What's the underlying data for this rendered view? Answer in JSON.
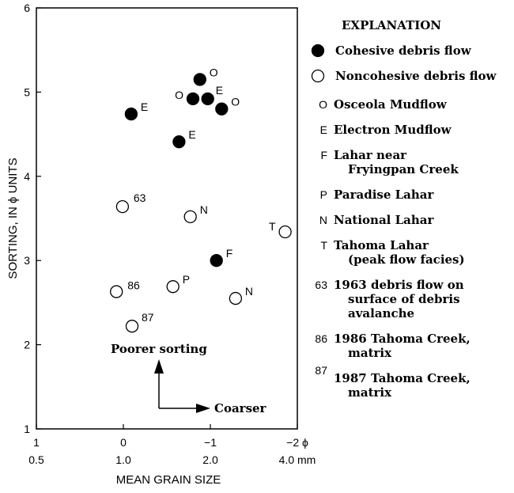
{
  "chart_data": {
    "type": "scatter",
    "xlabel": "MEAN GRAIN SIZE",
    "ylabel": "SORTING, IN ϕ UNITS",
    "x_axis": {
      "phi_ticks": [
        {
          "value": 1,
          "label": "1"
        },
        {
          "value": 0,
          "label": "0"
        },
        {
          "value": -1,
          "label": "−1"
        },
        {
          "value": -2,
          "label": "−2 ϕ"
        }
      ],
      "mm_ticks": [
        {
          "value": 1,
          "label": "0.5"
        },
        {
          "value": 0,
          "label": "1.0"
        },
        {
          "value": -1,
          "label": "2.0"
        },
        {
          "value": -2,
          "label": "4.0 mm"
        }
      ],
      "xlim": [
        1,
        -2
      ],
      "reversed": true
    },
    "y_axis": {
      "ticks": [
        1,
        2,
        3,
        4,
        5,
        6
      ],
      "ylim": [
        1,
        6
      ]
    },
    "grid": false,
    "series": [
      {
        "name": "Cohesive debris flow",
        "marker": "filled",
        "points": [
          {
            "x": -0.88,
            "y": 5.15,
            "label": "O"
          },
          {
            "x": -0.8,
            "y": 4.92,
            "label": "O"
          },
          {
            "x": -0.97,
            "y": 4.92,
            "label": "E"
          },
          {
            "x": -1.13,
            "y": 4.8,
            "label": "O"
          },
          {
            "x": -0.09,
            "y": 4.74,
            "label": "E"
          },
          {
            "x": -0.64,
            "y": 4.41,
            "label": "E"
          },
          {
            "x": -1.07,
            "y": 3.0,
            "label": "F"
          }
        ]
      },
      {
        "name": "Noncohesive debris flow",
        "marker": "open",
        "points": [
          {
            "x": 0.01,
            "y": 3.64,
            "label": "63"
          },
          {
            "x": -0.77,
            "y": 3.52,
            "label": "N"
          },
          {
            "x": -1.86,
            "y": 3.34,
            "label": "T"
          },
          {
            "x": -0.57,
            "y": 2.69,
            "label": "P"
          },
          {
            "x": 0.08,
            "y": 2.63,
            "label": "86"
          },
          {
            "x": -1.29,
            "y": 2.55,
            "label": "N"
          },
          {
            "x": -0.1,
            "y": 2.22,
            "label": "87"
          }
        ]
      }
    ],
    "annotations": {
      "poorer_sorting": "Poorer sorting",
      "coarser": "Coarser"
    },
    "legend": {
      "position": "right",
      "title": "EXPLANATION",
      "marker_entries": [
        {
          "marker": "filled",
          "text": "Cohesive debris flow"
        },
        {
          "marker": "open",
          "text": "Noncohesive debris flow"
        }
      ],
      "code_entries": [
        {
          "code": "O",
          "lines": [
            "Osceola Mudflow"
          ]
        },
        {
          "code": "E",
          "lines": [
            "Electron Mudflow"
          ]
        },
        {
          "code": "F",
          "lines": [
            "Lahar near",
            "Fryingpan Creek"
          ]
        },
        {
          "code": "P",
          "lines": [
            "Paradise Lahar"
          ]
        },
        {
          "code": "N",
          "lines": [
            "National Lahar"
          ]
        },
        {
          "code": "T",
          "lines": [
            "Tahoma Lahar",
            "(peak flow facies)"
          ]
        },
        {
          "code": "63",
          "lines": [
            "1963 debris flow on",
            "surface of debris",
            "avalanche"
          ]
        },
        {
          "code": "86",
          "lines": [
            "1986 Tahoma Creek,",
            "matrix"
          ]
        },
        {
          "code": "87",
          "lines": [
            "1987 Tahoma Creek,",
            "matrix"
          ]
        }
      ]
    }
  }
}
